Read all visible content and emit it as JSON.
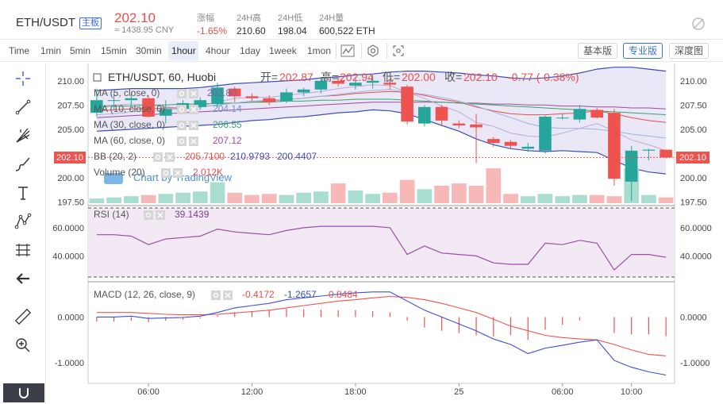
{
  "header": {
    "pair": "ETH/USDT",
    "tag": "主板",
    "price": "202.10",
    "price_cny": "≈ 1438.95 CNY",
    "stats": [
      {
        "label": "涨幅",
        "value": "-1.65%",
        "red": true
      },
      {
        "label": "24H高",
        "value": "210.60",
        "red": false
      },
      {
        "label": "24H低",
        "value": "198.04",
        "red": false
      },
      {
        "label": "24H量",
        "value": "600,522 ETH",
        "red": false
      }
    ]
  },
  "toolbar": {
    "timeframes": [
      "Time",
      "1min",
      "5min",
      "15min",
      "30min",
      "1hour",
      "4hour",
      "1day",
      "1week",
      "1mon"
    ],
    "active": "1hour",
    "views": [
      "基本版",
      "专业版",
      "深度图"
    ],
    "active_view": "专业版"
  },
  "legend": {
    "title": "ETH/USDT, 60, Huobi",
    "open_label": "开=",
    "open": "202.87",
    "high_label": "高=",
    "high": "202.94",
    "low_label": "低=",
    "low": "202.00",
    "close_label": "收=",
    "close": "202.10",
    "change": "-0.77 (-0.38%)",
    "ma5": "MA (5, close, 0)",
    "ma5_val": "202.80",
    "ma10": "MA (10, close, 0)",
    "ma10_val": "204.14",
    "ma30": "MA (30, close, 0)",
    "ma30_val": "206.55",
    "ma60": "MA (60, close, 0)",
    "ma60_val": "207.12",
    "bb": "BB (20, 2)",
    "bb_v1": "205.7100",
    "bb_v2": "210.9793",
    "bb_v3": "200.4407",
    "volume": "Volume (20)",
    "volume_val": "2.012K",
    "watermark": "Chart by TradingView",
    "rsi": "RSI (14)",
    "rsi_val": "39.1439",
    "macd": "MACD (12, 26, close, 9)",
    "macd_v1": "-0.4172",
    "macd_v2": "-1.2657",
    "macd_v3": "-0.8484"
  },
  "chart_data": {
    "type": "candlestick",
    "price_axis": {
      "ticks": [
        "210.00",
        "207.50",
        "205.00",
        "202.50",
        "200.00",
        "197.50"
      ],
      "ylim": [
        197.3,
        211.7
      ],
      "current_label": "202.10"
    },
    "rsi_axis": {
      "ticks": [
        "60.0000",
        "40.0000"
      ],
      "ylim": [
        25,
        74
      ]
    },
    "macd_axis": {
      "ticks": [
        "0.0000",
        "-1.0000"
      ],
      "ylim": [
        -1.4,
        0.72
      ]
    },
    "time_ticks": [
      {
        "label": "06:00",
        "i": 3
      },
      {
        "label": "12:00",
        "i": 9
      },
      {
        "label": "18:00",
        "i": 15
      },
      {
        "label": "25",
        "i": 21
      },
      {
        "label": "06:00",
        "i": 27
      },
      {
        "label": "10:00",
        "i": 31
      }
    ],
    "candles": [
      {
        "o": 206.7,
        "h": 209.2,
        "l": 206.3,
        "c": 208.0
      },
      {
        "o": 208.0,
        "h": 208.7,
        "l": 207.0,
        "c": 208.0
      },
      {
        "o": 208.0,
        "h": 208.6,
        "l": 207.4,
        "c": 208.2
      },
      {
        "o": 208.2,
        "h": 208.5,
        "l": 206.2,
        "c": 206.3
      },
      {
        "o": 206.4,
        "h": 208.0,
        "l": 205.6,
        "c": 207.1
      },
      {
        "o": 207.1,
        "h": 208.0,
        "l": 206.8,
        "c": 207.7
      },
      {
        "o": 207.3,
        "h": 208.3,
        "l": 207.0,
        "c": 208.0
      },
      {
        "o": 207.6,
        "h": 209.8,
        "l": 207.3,
        "c": 209.3
      },
      {
        "o": 209.2,
        "h": 209.4,
        "l": 207.8,
        "c": 208.4
      },
      {
        "o": 208.4,
        "h": 208.7,
        "l": 207.9,
        "c": 208.2
      },
      {
        "o": 208.2,
        "h": 208.5,
        "l": 207.5,
        "c": 207.8
      },
      {
        "o": 207.9,
        "h": 209.2,
        "l": 207.7,
        "c": 208.8
      },
      {
        "o": 208.8,
        "h": 209.3,
        "l": 208.4,
        "c": 209.1
      },
      {
        "o": 209.1,
        "h": 210.4,
        "l": 208.7,
        "c": 210.0
      },
      {
        "o": 210.0,
        "h": 210.6,
        "l": 209.4,
        "c": 209.7
      },
      {
        "o": 209.5,
        "h": 210.4,
        "l": 209.1,
        "c": 209.8
      },
      {
        "o": 209.8,
        "h": 210.6,
        "l": 209.2,
        "c": 210.0
      },
      {
        "o": 209.8,
        "h": 210.2,
        "l": 209.1,
        "c": 209.6
      },
      {
        "o": 209.4,
        "h": 209.6,
        "l": 205.5,
        "c": 205.8
      },
      {
        "o": 205.6,
        "h": 207.5,
        "l": 205.3,
        "c": 207.3
      },
      {
        "o": 207.3,
        "h": 207.5,
        "l": 205.4,
        "c": 205.9
      },
      {
        "o": 205.6,
        "h": 205.9,
        "l": 205.1,
        "c": 205.4
      },
      {
        "o": 205.5,
        "h": 206.6,
        "l": 201.5,
        "c": 205.2
      },
      {
        "o": 204.0,
        "h": 204.2,
        "l": 203.2,
        "c": 203.6
      },
      {
        "o": 203.7,
        "h": 203.9,
        "l": 203.0,
        "c": 203.3
      },
      {
        "o": 203.0,
        "h": 203.6,
        "l": 202.7,
        "c": 203.2
      },
      {
        "o": 202.8,
        "h": 206.4,
        "l": 202.5,
        "c": 206.3
      },
      {
        "o": 206.2,
        "h": 206.6,
        "l": 206.0,
        "c": 206.2
      },
      {
        "o": 206.0,
        "h": 207.5,
        "l": 205.7,
        "c": 207.1
      },
      {
        "o": 207.0,
        "h": 207.2,
        "l": 206.1,
        "c": 206.2
      },
      {
        "o": 206.7,
        "h": 207.1,
        "l": 199.2,
        "c": 199.9
      },
      {
        "o": 199.6,
        "h": 203.3,
        "l": 197.6,
        "c": 202.8
      },
      {
        "o": 202.8,
        "h": 203.0,
        "l": 201.8,
        "c": 202.9
      },
      {
        "o": 202.9,
        "h": 202.9,
        "l": 202.0,
        "c": 202.1
      }
    ],
    "volume": [
      4,
      5,
      6,
      7,
      8,
      9,
      10,
      18,
      9,
      7,
      8,
      7,
      9,
      10,
      17,
      11,
      8,
      9,
      20,
      12,
      15,
      17,
      15,
      30,
      8,
      6,
      8,
      6,
      7,
      7,
      6,
      30,
      7,
      5
    ],
    "ma5": [
      207.4,
      207.5,
      207.6,
      207.5,
      207.3,
      207.2,
      207.4,
      207.8,
      208.2,
      208.3,
      208.3,
      208.5,
      208.7,
      208.9,
      209.2,
      209.4,
      209.6,
      209.5,
      208.8,
      208.2,
      207.4,
      206.8,
      205.7,
      205.3,
      204.6,
      204.3,
      204.2,
      204.6,
      205.1,
      205.6,
      204.8,
      203.9,
      203.4,
      202.8
    ],
    "ma10": [
      206.5,
      206.6,
      206.8,
      206.9,
      207.0,
      207.1,
      207.3,
      207.5,
      207.7,
      207.9,
      208.0,
      208.1,
      208.2,
      208.4,
      208.6,
      208.8,
      209.0,
      209.1,
      208.8,
      208.6,
      208.3,
      207.9,
      207.4,
      206.8,
      206.2,
      205.6,
      205.2,
      205.1,
      205.1,
      205.0,
      204.8,
      204.5,
      204.3,
      204.1
    ],
    "ma30": [
      207.3,
      207.4,
      207.4,
      207.5,
      207.5,
      207.6,
      207.6,
      207.7,
      207.7,
      207.8,
      207.8,
      207.9,
      207.9,
      208.0,
      208.0,
      208.1,
      208.1,
      208.1,
      208.0,
      207.9,
      207.8,
      207.7,
      207.6,
      207.5,
      207.4,
      207.3,
      207.2,
      207.1,
      207.0,
      206.9,
      206.8,
      206.7,
      206.6,
      206.5
    ],
    "ma60": [
      206.2,
      206.3,
      206.4,
      206.5,
      206.6,
      206.7,
      206.8,
      206.9,
      207.0,
      207.1,
      207.2,
      207.3,
      207.4,
      207.5,
      207.6,
      207.7,
      207.8,
      207.8,
      207.8,
      207.8,
      207.8,
      207.7,
      207.7,
      207.6,
      207.6,
      207.5,
      207.5,
      207.4,
      207.4,
      207.3,
      207.3,
      207.2,
      207.2,
      207.1
    ],
    "bb_upper": [
      209.0,
      209.1,
      209.2,
      209.2,
      209.2,
      209.2,
      209.3,
      209.5,
      209.7,
      209.8,
      209.9,
      210.0,
      210.1,
      210.3,
      210.4,
      210.6,
      210.7,
      210.9,
      211.0,
      211.0,
      210.9,
      210.8,
      210.6,
      210.5,
      210.3,
      210.2,
      210.3,
      210.5,
      210.8,
      211.2,
      211.4,
      211.4,
      211.2,
      211.0
    ],
    "bb_lower": [
      204.8,
      204.9,
      205.0,
      205.1,
      205.2,
      205.3,
      205.4,
      205.5,
      205.7,
      205.9,
      206.0,
      206.2,
      206.3,
      206.5,
      206.7,
      206.8,
      207.0,
      206.9,
      206.6,
      206.0,
      205.4,
      204.8,
      204.0,
      203.4,
      203.0,
      202.8,
      202.7,
      202.8,
      202.7,
      202.6,
      201.8,
      201.0,
      200.6,
      200.4
    ],
    "bb_mid": [
      206.9,
      207.0,
      207.1,
      207.1,
      207.2,
      207.2,
      207.3,
      207.5,
      207.7,
      207.8,
      207.9,
      208.1,
      208.2,
      208.4,
      208.5,
      208.7,
      208.8,
      208.9,
      208.8,
      208.5,
      208.1,
      207.8,
      207.3,
      206.9,
      206.6,
      206.5,
      206.5,
      206.6,
      206.7,
      206.9,
      206.6,
      206.2,
      205.9,
      205.7
    ],
    "rsi": [
      55,
      55,
      54,
      48,
      52,
      53,
      54,
      59,
      57,
      56,
      55,
      58,
      60,
      61,
      61,
      61,
      61,
      60,
      41,
      47,
      42,
      41,
      40,
      35,
      34,
      34,
      49,
      48,
      51,
      49,
      30,
      41,
      41,
      39
    ],
    "macd_line": [
      0.0,
      0.0,
      0.02,
      -0.03,
      -0.02,
      -0.01,
      0.02,
      0.1,
      0.2,
      0.25,
      0.3,
      0.38,
      0.42,
      0.46,
      0.5,
      0.53,
      0.55,
      0.55,
      0.35,
      0.15,
      0.0,
      -0.15,
      -0.3,
      -0.48,
      -0.6,
      -0.8,
      -0.68,
      -0.62,
      -0.55,
      -0.5,
      -0.95,
      -1.1,
      -1.2,
      -1.27
    ],
    "macd_signal": [
      0.1,
      0.1,
      0.1,
      0.08,
      0.06,
      0.05,
      0.05,
      0.06,
      0.09,
      0.12,
      0.15,
      0.2,
      0.25,
      0.3,
      0.35,
      0.38,
      0.42,
      0.45,
      0.43,
      0.38,
      0.3,
      0.2,
      0.1,
      -0.05,
      -0.2,
      -0.3,
      -0.4,
      -0.45,
      -0.48,
      -0.5,
      -0.6,
      -0.72,
      -0.82,
      -0.85
    ],
    "macd_hist": [
      -0.1,
      -0.1,
      -0.08,
      -0.11,
      -0.08,
      -0.06,
      -0.03,
      0.04,
      0.11,
      0.13,
      0.15,
      0.18,
      0.17,
      0.16,
      0.15,
      0.15,
      0.13,
      0.1,
      -0.08,
      -0.23,
      -0.3,
      -0.35,
      -0.4,
      -0.43,
      -0.4,
      -0.5,
      -0.28,
      -0.17,
      -0.07,
      0.0,
      -0.35,
      -0.38,
      -0.38,
      -0.42
    ]
  },
  "colors": {
    "up": "#26a69a",
    "down": "#ef5350",
    "accent": "#3b6fd8"
  }
}
